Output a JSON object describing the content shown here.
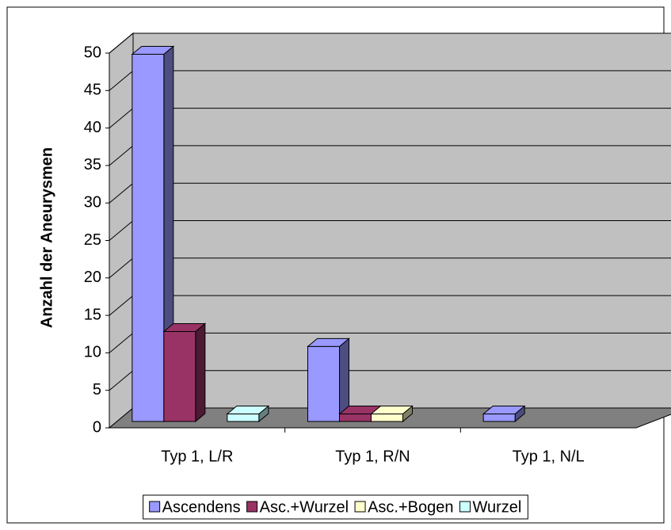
{
  "chart_data": {
    "type": "bar3d",
    "y_label": "Anzahl der Aneurysmen",
    "categories": [
      "Typ 1, L/R",
      "Typ 1, R/N",
      "Typ 1, N/L"
    ],
    "series": [
      {
        "name": "Ascendens",
        "color": "#9999ff",
        "values": [
          49,
          10,
          1
        ]
      },
      {
        "name": "Asc.+Wurzel",
        "color": "#993366",
        "values": [
          12,
          1,
          0
        ]
      },
      {
        "name": "Asc.+Bogen",
        "color": "#ffffcc",
        "values": [
          0,
          1,
          0
        ]
      },
      {
        "name": "Wurzel",
        "color": "#ccffff",
        "values": [
          1,
          0,
          0
        ]
      }
    ],
    "ylim": [
      0,
      50
    ],
    "yticks": [
      0,
      5,
      10,
      15,
      20,
      25,
      30,
      35,
      40,
      45,
      50
    ],
    "grid": true,
    "legend": "bottom"
  }
}
